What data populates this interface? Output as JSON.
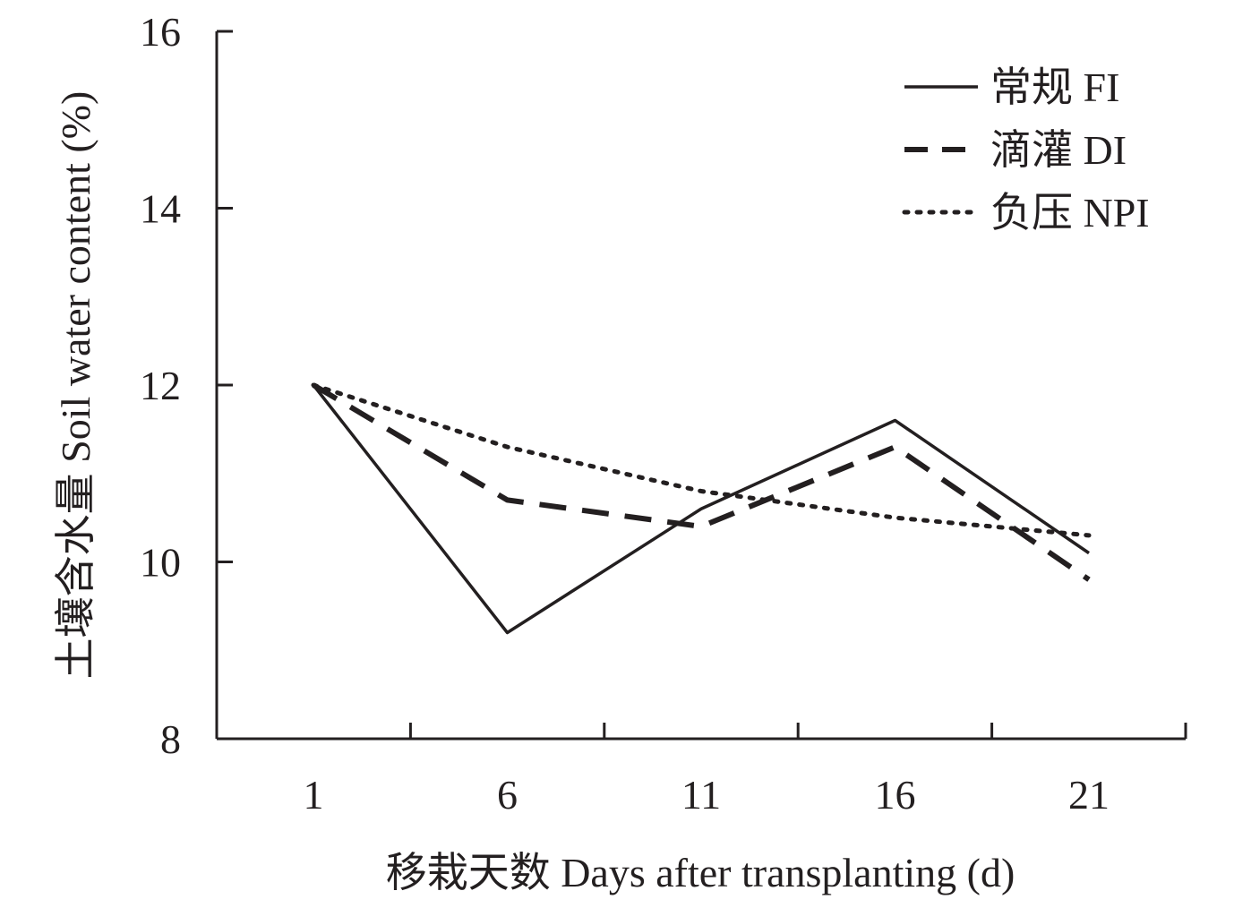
{
  "chart_data": {
    "type": "line",
    "xlabel": "移栽天数 Days after transplanting (d)",
    "ylabel": "土壤含水量 Soil water content (%)",
    "x": [
      1,
      6,
      11,
      16,
      21
    ],
    "x_ticks": [
      "1",
      "6",
      "11",
      "16",
      "21"
    ],
    "y_ticks": [
      "8",
      "10",
      "12",
      "14",
      "16"
    ],
    "ylim": [
      8,
      16
    ],
    "grid": false,
    "legend_position": "top-right",
    "series": [
      {
        "name": "常规 FI",
        "style": "solid",
        "color": "#231f20",
        "values": [
          12.0,
          9.2,
          10.6,
          11.6,
          10.1
        ]
      },
      {
        "name": "滴灌 DI",
        "style": "dashed",
        "color": "#231f20",
        "values": [
          12.0,
          10.7,
          10.4,
          11.3,
          9.8
        ]
      },
      {
        "name": "负压 NPI",
        "style": "dotted",
        "color": "#231f20",
        "values": [
          12.0,
          11.3,
          10.8,
          10.5,
          10.3
        ]
      }
    ]
  }
}
